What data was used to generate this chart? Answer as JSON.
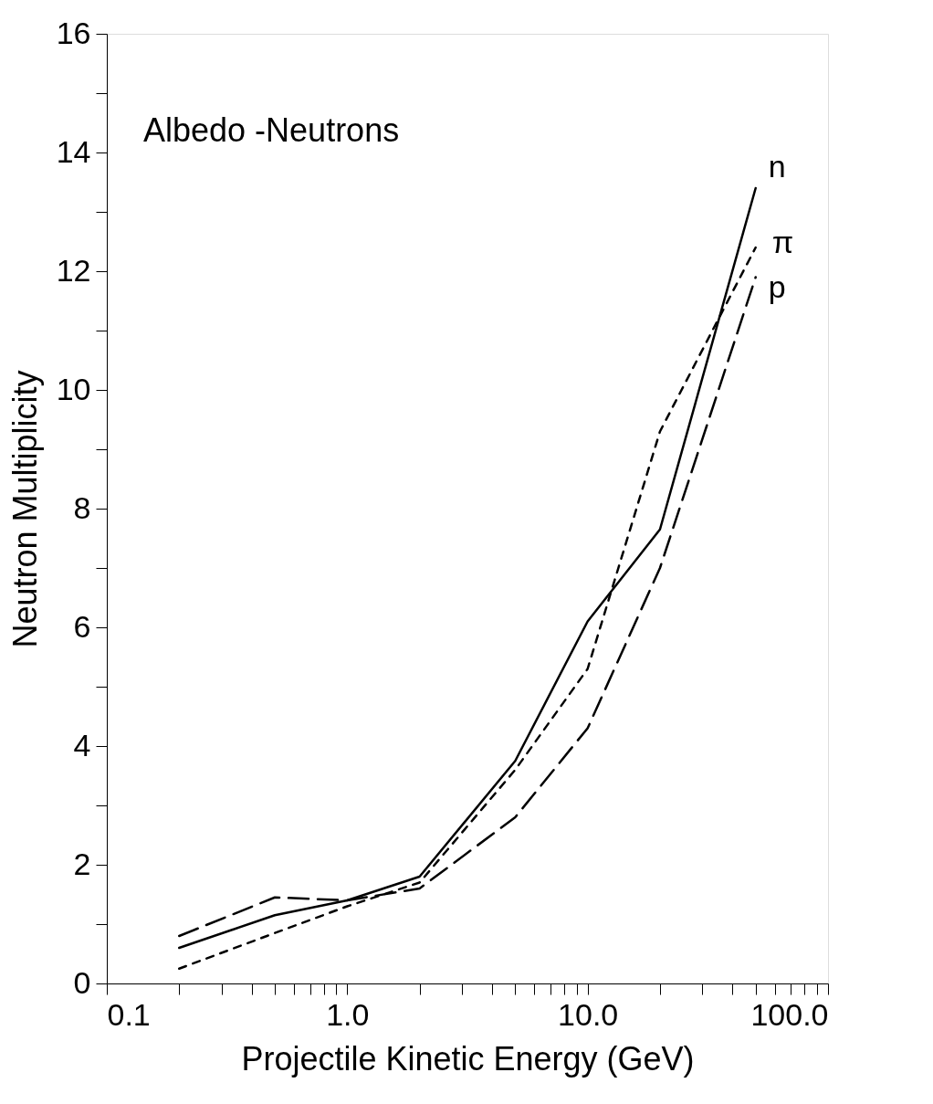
{
  "chart_data": {
    "type": "line",
    "annotations": [
      "Albedo -Neutrons"
    ],
    "xlabel": "Projectile Kinetic Energy (GeV)",
    "ylabel": "Neutron Multiplicity",
    "log": "x",
    "xlim": [
      0.1,
      100
    ],
    "ylim": [
      0,
      16
    ],
    "xticks": [
      {
        "value": 0.1,
        "label": "0.1"
      },
      {
        "value": 0.2,
        "label": null
      },
      {
        "value": 0.3,
        "label": null
      },
      {
        "value": 0.4,
        "label": null
      },
      {
        "value": 0.5,
        "label": null
      },
      {
        "value": 0.6,
        "label": null
      },
      {
        "value": 0.7,
        "label": null
      },
      {
        "value": 0.8,
        "label": null
      },
      {
        "value": 0.9,
        "label": null
      },
      {
        "value": 1,
        "label": "1.0"
      },
      {
        "value": 2,
        "label": null
      },
      {
        "value": 3,
        "label": null
      },
      {
        "value": 4,
        "label": null
      },
      {
        "value": 5,
        "label": null
      },
      {
        "value": 6,
        "label": null
      },
      {
        "value": 7,
        "label": null
      },
      {
        "value": 8,
        "label": null
      },
      {
        "value": 9,
        "label": null
      },
      {
        "value": 10,
        "label": "10.0"
      },
      {
        "value": 20,
        "label": null
      },
      {
        "value": 30,
        "label": null
      },
      {
        "value": 40,
        "label": null
      },
      {
        "value": 50,
        "label": null
      },
      {
        "value": 60,
        "label": null
      },
      {
        "value": 70,
        "label": null
      },
      {
        "value": 80,
        "label": null
      },
      {
        "value": 90,
        "label": null
      },
      {
        "value": 100,
        "label": "100.0"
      }
    ],
    "yticks": [
      0,
      {
        "value": 1,
        "label": null
      },
      2,
      {
        "value": 3,
        "label": null
      },
      4,
      {
        "value": 5,
        "label": null
      },
      6,
      {
        "value": 7,
        "label": null
      },
      8,
      {
        "value": 9,
        "label": null
      },
      10,
      {
        "value": 11,
        "label": null
      },
      12,
      {
        "value": 13,
        "label": null
      },
      14,
      {
        "value": 15,
        "label": null
      },
      16
    ],
    "grid": false,
    "marker": "none",
    "series": [
      {
        "name": "n",
        "color": "#000000",
        "line_style": "solid",
        "x": [
          0.2,
          0.5,
          1,
          2,
          5,
          10,
          20,
          50
        ],
        "values": [
          0.6,
          1.15,
          1.4,
          1.8,
          3.75,
          6.1,
          7.65,
          13.4
        ]
      },
      {
        "name": "π",
        "color": "#000000",
        "line_style": "dotted",
        "x": [
          0.2,
          0.5,
          1,
          2,
          5,
          10,
          20,
          50
        ],
        "values": [
          0.25,
          0.85,
          1.3,
          1.7,
          3.6,
          5.3,
          9.3,
          12.4
        ]
      },
      {
        "name": "p",
        "color": "#000000",
        "line_style": "dashed",
        "x": [
          0.2,
          0.5,
          1,
          2,
          5,
          10,
          20,
          50
        ],
        "values": [
          0.8,
          1.45,
          1.4,
          1.6,
          2.8,
          4.3,
          7.0,
          11.9
        ]
      }
    ]
  }
}
